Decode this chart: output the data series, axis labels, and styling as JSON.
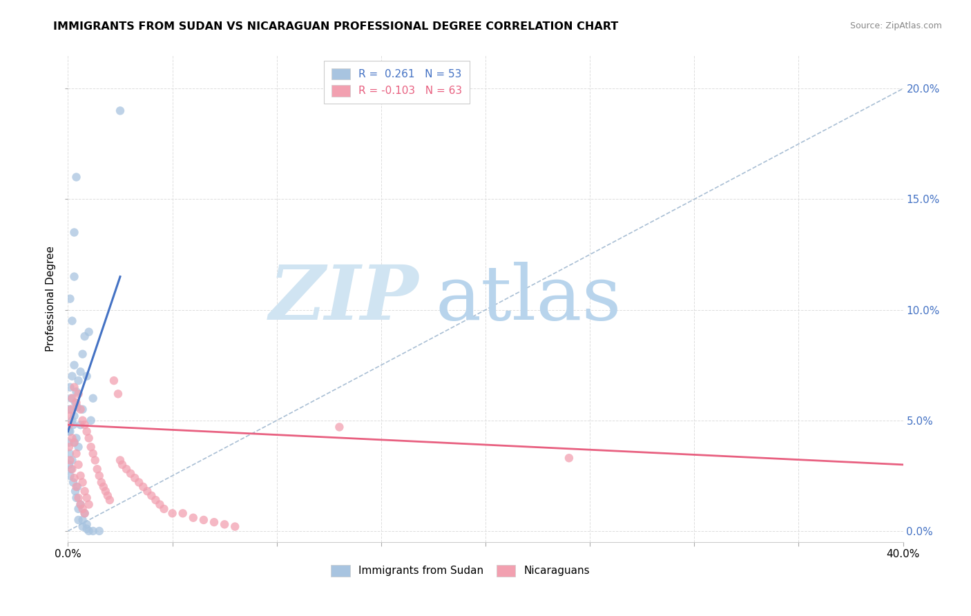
{
  "title": "IMMIGRANTS FROM SUDAN VS NICARAGUAN PROFESSIONAL DEGREE CORRELATION CHART",
  "source": "Source: ZipAtlas.com",
  "ylabel": "Professional Degree",
  "right_ytick_vals": [
    0.0,
    0.05,
    0.1,
    0.15,
    0.2
  ],
  "right_ytick_labels": [
    "0.0%",
    "5.0%",
    "10.0%",
    "15.0%",
    "20.0%"
  ],
  "xlim": [
    0.0,
    0.4
  ],
  "ylim": [
    -0.005,
    0.215
  ],
  "color_blue": "#a8c4e0",
  "color_pink": "#f2a0b0",
  "line_blue": "#4472c4",
  "line_pink": "#e86080",
  "line_gray": "#a0b8d0",
  "sudan_x": [
    0.0005,
    0.0008,
    0.001,
    0.001,
    0.0015,
    0.002,
    0.002,
    0.0025,
    0.003,
    0.003,
    0.0035,
    0.004,
    0.004,
    0.0045,
    0.005,
    0.005,
    0.006,
    0.006,
    0.007,
    0.007,
    0.008,
    0.009,
    0.01,
    0.011,
    0.012,
    0.0005,
    0.0008,
    0.001,
    0.0015,
    0.002,
    0.0025,
    0.003,
    0.0035,
    0.004,
    0.0045,
    0.005,
    0.006,
    0.007,
    0.008,
    0.009,
    0.01,
    0.0005,
    0.001,
    0.002,
    0.003,
    0.004,
    0.005,
    0.007,
    0.009,
    0.012,
    0.015,
    0.003,
    0.025
  ],
  "sudan_y": [
    0.04,
    0.055,
    0.045,
    0.065,
    0.06,
    0.05,
    0.07,
    0.048,
    0.052,
    0.075,
    0.058,
    0.063,
    0.042,
    0.056,
    0.068,
    0.038,
    0.072,
    0.048,
    0.055,
    0.08,
    0.088,
    0.07,
    0.09,
    0.05,
    0.06,
    0.03,
    0.035,
    0.025,
    0.028,
    0.032,
    0.022,
    0.04,
    0.018,
    0.015,
    0.02,
    0.01,
    0.012,
    0.005,
    0.008,
    0.003,
    0.0,
    0.045,
    0.105,
    0.095,
    0.115,
    0.16,
    0.005,
    0.002,
    0.001,
    0.0,
    0.0,
    0.135,
    0.19
  ],
  "nicaragua_x": [
    0.0005,
    0.001,
    0.0015,
    0.002,
    0.002,
    0.003,
    0.003,
    0.004,
    0.004,
    0.005,
    0.005,
    0.006,
    0.006,
    0.007,
    0.007,
    0.008,
    0.008,
    0.009,
    0.009,
    0.01,
    0.01,
    0.011,
    0.012,
    0.013,
    0.014,
    0.015,
    0.016,
    0.017,
    0.018,
    0.019,
    0.02,
    0.022,
    0.024,
    0.025,
    0.026,
    0.028,
    0.03,
    0.032,
    0.034,
    0.036,
    0.038,
    0.04,
    0.042,
    0.044,
    0.046,
    0.05,
    0.055,
    0.06,
    0.065,
    0.07,
    0.075,
    0.08,
    0.0005,
    0.001,
    0.002,
    0.003,
    0.004,
    0.005,
    0.006,
    0.007,
    0.008,
    0.24,
    0.13
  ],
  "nicaragua_y": [
    0.048,
    0.052,
    0.055,
    0.06,
    0.042,
    0.065,
    0.04,
    0.058,
    0.035,
    0.062,
    0.03,
    0.055,
    0.025,
    0.05,
    0.022,
    0.048,
    0.018,
    0.045,
    0.015,
    0.042,
    0.012,
    0.038,
    0.035,
    0.032,
    0.028,
    0.025,
    0.022,
    0.02,
    0.018,
    0.016,
    0.014,
    0.068,
    0.062,
    0.032,
    0.03,
    0.028,
    0.026,
    0.024,
    0.022,
    0.02,
    0.018,
    0.016,
    0.014,
    0.012,
    0.01,
    0.008,
    0.008,
    0.006,
    0.005,
    0.004,
    0.003,
    0.002,
    0.038,
    0.032,
    0.028,
    0.024,
    0.02,
    0.015,
    0.012,
    0.01,
    0.008,
    0.033,
    0.047
  ],
  "blue_line_x": [
    0.0,
    0.025
  ],
  "blue_line_y": [
    0.045,
    0.115
  ],
  "pink_line_x": [
    0.0,
    0.4
  ],
  "pink_line_y": [
    0.048,
    0.03
  ],
  "gray_line_x": [
    0.0,
    0.4
  ],
  "gray_line_y": [
    0.0,
    0.2
  ],
  "legend1_label": "R =  0.261   N = 53",
  "legend2_label": "R = -0.103   N = 63",
  "legend_text_color1": "#4472c4",
  "legend_text_color2": "#e86080",
  "bottom_label1": "Immigrants from Sudan",
  "bottom_label2": "Nicaraguans"
}
